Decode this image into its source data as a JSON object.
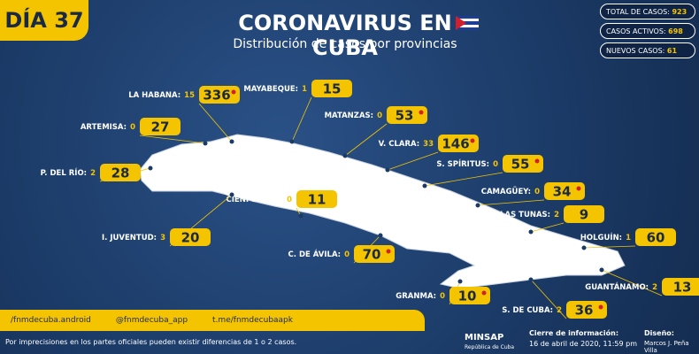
{
  "header": {
    "day": "DÍA 37",
    "title": "CORONAVIRUS EN CUBA",
    "subtitle": "Distribución de casos por provincias"
  },
  "stats": [
    {
      "label": "TOTAL DE CASOS:",
      "value": 923
    },
    {
      "label": "CASOS ACTIVOS:",
      "value": 698
    },
    {
      "label": "NUEVOS CASOS:",
      "value": 61
    }
  ],
  "provinces": [
    {
      "name": "LA HABANA:",
      "new": 15,
      "total": 336,
      "marker": true
    },
    {
      "name": "MAYABEQUE:",
      "new": 1,
      "total": 15,
      "marker": false
    },
    {
      "name": "MATANZAS:",
      "new": 0,
      "total": 53,
      "marker": true
    },
    {
      "name": "ARTEMISA:",
      "new": 0,
      "total": 27,
      "marker": false
    },
    {
      "name": "V. CLARA:",
      "new": 33,
      "total": 146,
      "marker": true
    },
    {
      "name": "P. DEL RÍO:",
      "new": 2,
      "total": 28,
      "marker": false
    },
    {
      "name": "S. SPÍRITUS:",
      "new": 0,
      "total": 55,
      "marker": true
    },
    {
      "name": "CAMAGÜEY:",
      "new": 0,
      "total": 34,
      "marker": true
    },
    {
      "name": "CIENFUEGOS:",
      "new": 0,
      "total": 11,
      "marker": false
    },
    {
      "name": "LAS TUNAS:",
      "new": 2,
      "total": 9,
      "marker": false
    },
    {
      "name": "I. JUVENTUD:",
      "new": 3,
      "total": 20,
      "marker": false
    },
    {
      "name": "HOLGUÍN:",
      "new": 1,
      "total": 60,
      "marker": false
    },
    {
      "name": "C. DE ÁVILA:",
      "new": 0,
      "total": 70,
      "marker": true
    },
    {
      "name": "GUANTÁNAMO:",
      "new": 2,
      "total": 13,
      "marker": false
    },
    {
      "name": "GRANMA:",
      "new": 0,
      "total": 10,
      "marker": true
    },
    {
      "name": "S. DE CUBA:",
      "new": 2,
      "total": 36,
      "marker": true
    }
  ],
  "footer": {
    "social": [
      "/fnmdecuba.android",
      "@fnmdecuba_app",
      "t.me/fnmdecubaapk"
    ],
    "note": "Por imprecisiones en los partes oficiales pueden existir diferencias de 1 o 2 casos.",
    "org": "MINSAP",
    "org_sub": "República de Cuba",
    "closing_label": "Cierre de información:",
    "closing_date": "16 de abril de 2020, 11:59 pm",
    "design_label": "Diseño:",
    "designer": "Marcos J. Peña Villa"
  }
}
